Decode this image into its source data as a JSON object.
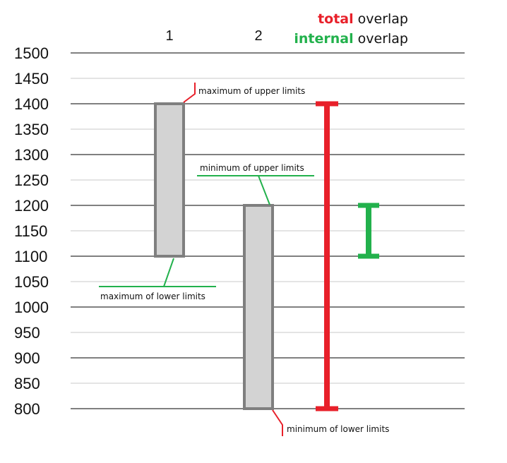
{
  "chart_data": {
    "type": "floating-bar",
    "title": "",
    "xlabel": "",
    "ylabel": "",
    "ylim": [
      800,
      1500
    ],
    "y_ticks": [
      1500,
      1450,
      1400,
      1350,
      1300,
      1250,
      1200,
      1150,
      1100,
      1050,
      1000,
      950,
      900,
      850,
      800
    ],
    "categories": [
      "1",
      "2"
    ],
    "ranges": [
      {
        "category": "1",
        "lower": 1100,
        "upper": 1400
      },
      {
        "category": "2",
        "lower": 800,
        "upper": 1200
      }
    ],
    "overlaps": [
      {
        "keyword": "total",
        "label": "overlap",
        "lower": 800,
        "upper": 1400,
        "color": "#e8202a"
      },
      {
        "keyword": "internal",
        "label": "overlap",
        "lower": 1100,
        "upper": 1200,
        "color": "#22b14c"
      }
    ],
    "annotations": [
      {
        "id": "max-upper",
        "text": "maximum of upper limits",
        "value": 1400,
        "color": "#e8202a"
      },
      {
        "id": "min-upper",
        "text": "minimum of upper limits",
        "value": 1200,
        "color": "#22b14c"
      },
      {
        "id": "max-lower",
        "text": "maximum of lower limits",
        "value": 1100,
        "color": "#22b14c"
      },
      {
        "id": "min-lower",
        "text": "minimum of lower limits",
        "value": 800,
        "color": "#e8202a"
      }
    ],
    "colors": {
      "bar_fill": "#d3d3d3",
      "bar_stroke": "#7f7f7f",
      "major_grid": "#000000",
      "minor_grid": "#c8c8c8"
    },
    "grid": true,
    "legend_position": "top-right"
  }
}
